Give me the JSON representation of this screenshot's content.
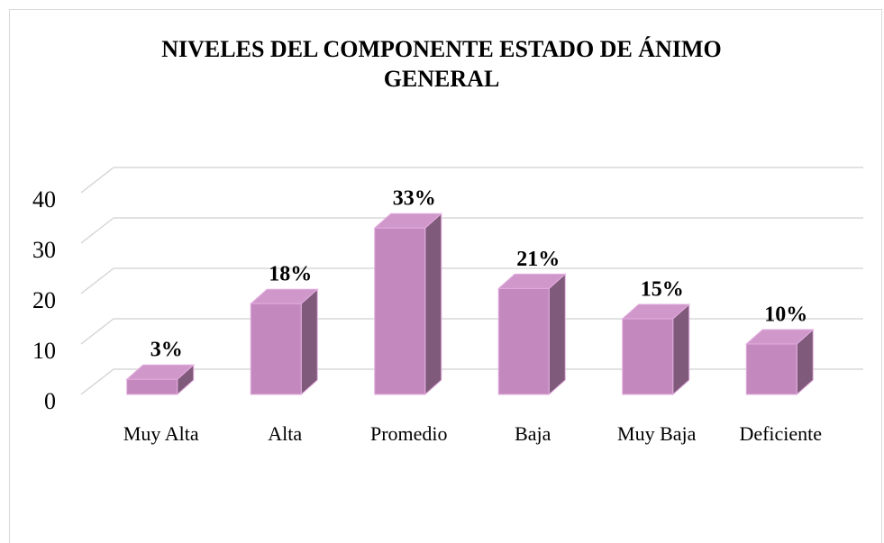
{
  "chart_data": {
    "type": "bar3d",
    "title": "NIVELES DEL COMPONENTE ESTADO DE ÁNIMO GENERAL",
    "categories": [
      "Muy Alta",
      "Alta",
      "Promedio",
      "Baja",
      "Muy Baja",
      "Deficiente"
    ],
    "values": [
      3,
      18,
      33,
      21,
      15,
      10
    ],
    "value_labels": [
      "3%",
      "18%",
      "33%",
      "21%",
      "15%",
      "10%"
    ],
    "color": "#c389be",
    "ylim": [
      0,
      40
    ],
    "yticks": [
      0,
      10,
      20,
      30,
      40
    ],
    "grid": true
  }
}
